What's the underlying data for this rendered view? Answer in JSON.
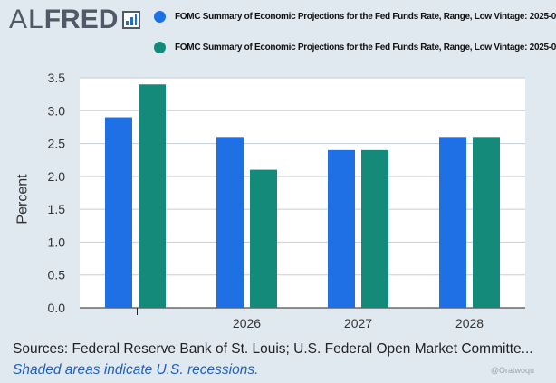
{
  "header": {
    "logo_al": "AL",
    "logo_fred": "FRED",
    "logo_icon": "chart-bars-icon"
  },
  "legend": [
    {
      "label": "FOMC Summary of Economic Projections for the Fed Funds Rate, Range, Low Vintage: 2025-0",
      "color": "#1f6fe5"
    },
    {
      "label": "FOMC Summary of Economic Projections for the Fed Funds Rate, Range, Low Vintage: 2025-0",
      "color": "#138a7a"
    }
  ],
  "chart_data": {
    "type": "bar",
    "title": "",
    "xlabel": "",
    "ylabel": "Percent",
    "ylim": [
      0,
      3.5
    ],
    "yticks": [
      "0.0",
      "0.5",
      "1.0",
      "1.5",
      "2.0",
      "2.5",
      "3.0",
      "3.5"
    ],
    "grid": true,
    "categories": [
      "",
      "2026",
      "2027",
      "2028"
    ],
    "series": [
      {
        "name": "FOMC Summary of Economic Projections for the Fed Funds Rate, Range, Low Vintage: 2025-0 (series 1)",
        "color": "#1f6fe5",
        "values": [
          2.9,
          2.6,
          2.4,
          2.6
        ]
      },
      {
        "name": "FOMC Summary of Economic Projections for the Fed Funds Rate, Range, Low Vintage: 2025-0 (series 2)",
        "color": "#138a7a",
        "values": [
          3.4,
          2.1,
          2.4,
          2.6
        ]
      }
    ]
  },
  "footer": {
    "sources": "Sources: Federal Reserve Bank of St. Louis; U.S. Federal Open Market Committe...",
    "note": "Shaded areas indicate U.S. recessions.",
    "watermark": "@Oratwoqu"
  }
}
